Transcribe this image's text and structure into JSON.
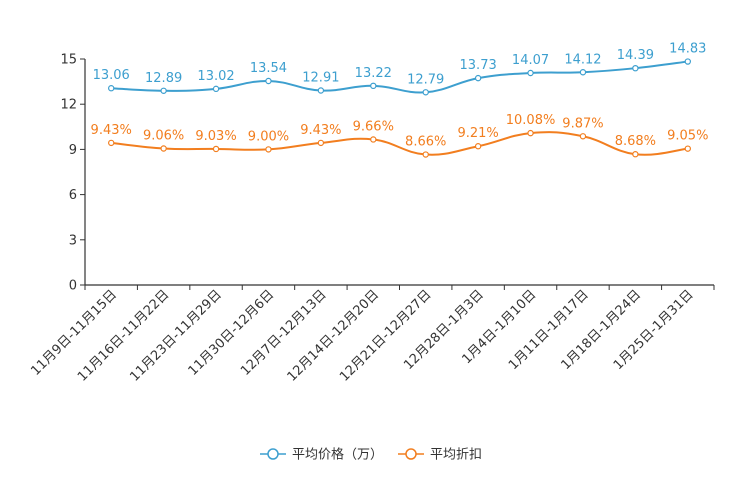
{
  "chart_data": {
    "type": "line",
    "title": "",
    "xlabel": "",
    "ylabel": "",
    "ylim": [
      0,
      15
    ],
    "yticks": [
      0,
      3,
      6,
      9,
      12,
      15
    ],
    "yticks_text": [
      "0",
      "3",
      "6",
      "9",
      "12",
      "15"
    ],
    "grid": false,
    "legend_position": "bottom-center",
    "categories": [
      "11月9日-11月15日",
      "11月16日-11月22日",
      "11月23日-11月29日",
      "11月30日-12月6日",
      "12月7日-12月13日",
      "12月14日-12月20日",
      "12月21日-12月27日",
      "12月28日-1月3日",
      "1月4日-1月10日",
      "1月11日-1月17日",
      "1月18日-1月24日",
      "1月25日-1月31日"
    ],
    "series": [
      {
        "name": "平均价格（万）",
        "color": "#3d9fcf",
        "values": [
          13.06,
          12.89,
          13.02,
          13.54,
          12.91,
          13.22,
          12.79,
          13.73,
          14.07,
          14.12,
          14.39,
          14.83
        ],
        "labels": [
          "13.06",
          "12.89",
          "13.02",
          "13.54",
          "12.91",
          "13.22",
          "12.79",
          "13.73",
          "14.07",
          "14.12",
          "14.39",
          "14.83"
        ]
      },
      {
        "name": "平均折扣",
        "color": "#f27e1f",
        "values": [
          9.43,
          9.06,
          9.03,
          9.0,
          9.43,
          9.66,
          8.66,
          9.21,
          10.08,
          9.87,
          8.68,
          9.05
        ],
        "labels": [
          "9.43%",
          "9.06%",
          "9.03%",
          "9.00%",
          "9.43%",
          "9.66%",
          "8.66%",
          "9.21%",
          "10.08%",
          "9.87%",
          "8.68%",
          "9.05%"
        ]
      }
    ]
  }
}
